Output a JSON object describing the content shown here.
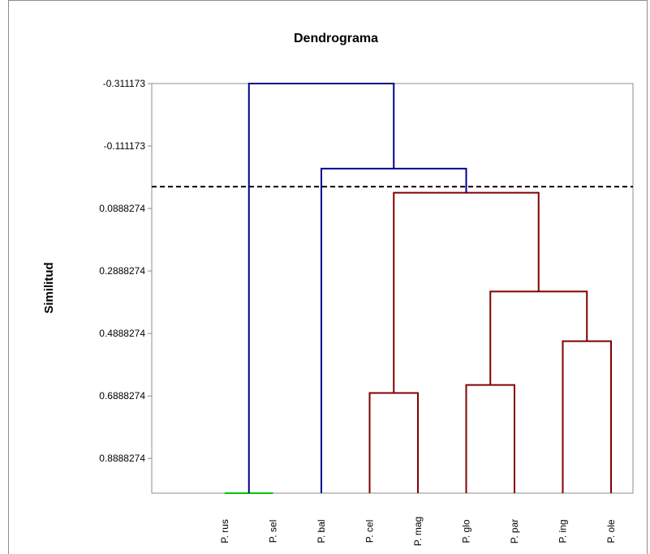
{
  "chart_data": {
    "type": "dendrogram",
    "title": "Dendrograma",
    "ylabel": "Similitud",
    "xlabel": "",
    "y_ticks": [
      "-0.311173",
      "-0.111173",
      "0.0888274",
      "0.2888274",
      "0.4888274",
      "0.6888274",
      "0.8888274"
    ],
    "y_tick_values": [
      -0.311173,
      -0.111173,
      0.0888274,
      0.2888274,
      0.4888274,
      0.6888274,
      0.8888274
    ],
    "ylim": [
      -0.311173,
      1.0
    ],
    "y_inverted": true,
    "cut_line": 0.0188,
    "leaves": [
      "P. rus",
      "P. sel",
      "P. bal",
      "P. cel",
      "P. mag",
      "P. glo",
      "P. par",
      "P. ing",
      "P. ole"
    ],
    "merges": [
      {
        "left": [
          0
        ],
        "right": [
          1
        ],
        "height": 1.0,
        "color": "#00c800"
      },
      {
        "left": [
          3
        ],
        "right": [
          4
        ],
        "height": 0.6795,
        "color": "#800000"
      },
      {
        "left": [
          5
        ],
        "right": [
          6
        ],
        "height": 0.6536,
        "color": "#800000"
      },
      {
        "left": [
          7
        ],
        "right": [
          8
        ],
        "height": 0.5136,
        "color": "#800000"
      },
      {
        "left": [
          5,
          6
        ],
        "right": [
          7,
          8
        ],
        "height": 0.3545,
        "color": "#800000"
      },
      {
        "left": [
          3,
          4
        ],
        "right": [
          5,
          6,
          7,
          8
        ],
        "height": 0.0384,
        "color": "#800000"
      },
      {
        "left": [
          2
        ],
        "right": [
          3,
          4,
          5,
          6,
          7,
          8
        ],
        "height": -0.0388,
        "color": "#00008b"
      },
      {
        "left": [
          0,
          1
        ],
        "right": [
          2,
          3,
          4,
          5,
          6,
          7,
          8
        ],
        "height": -0.311173,
        "color": "#00008b"
      }
    ],
    "colors": {
      "cluster_low": "#800000",
      "cluster_high": "#00008b",
      "base": "#00c800",
      "cut": "#000000"
    }
  }
}
